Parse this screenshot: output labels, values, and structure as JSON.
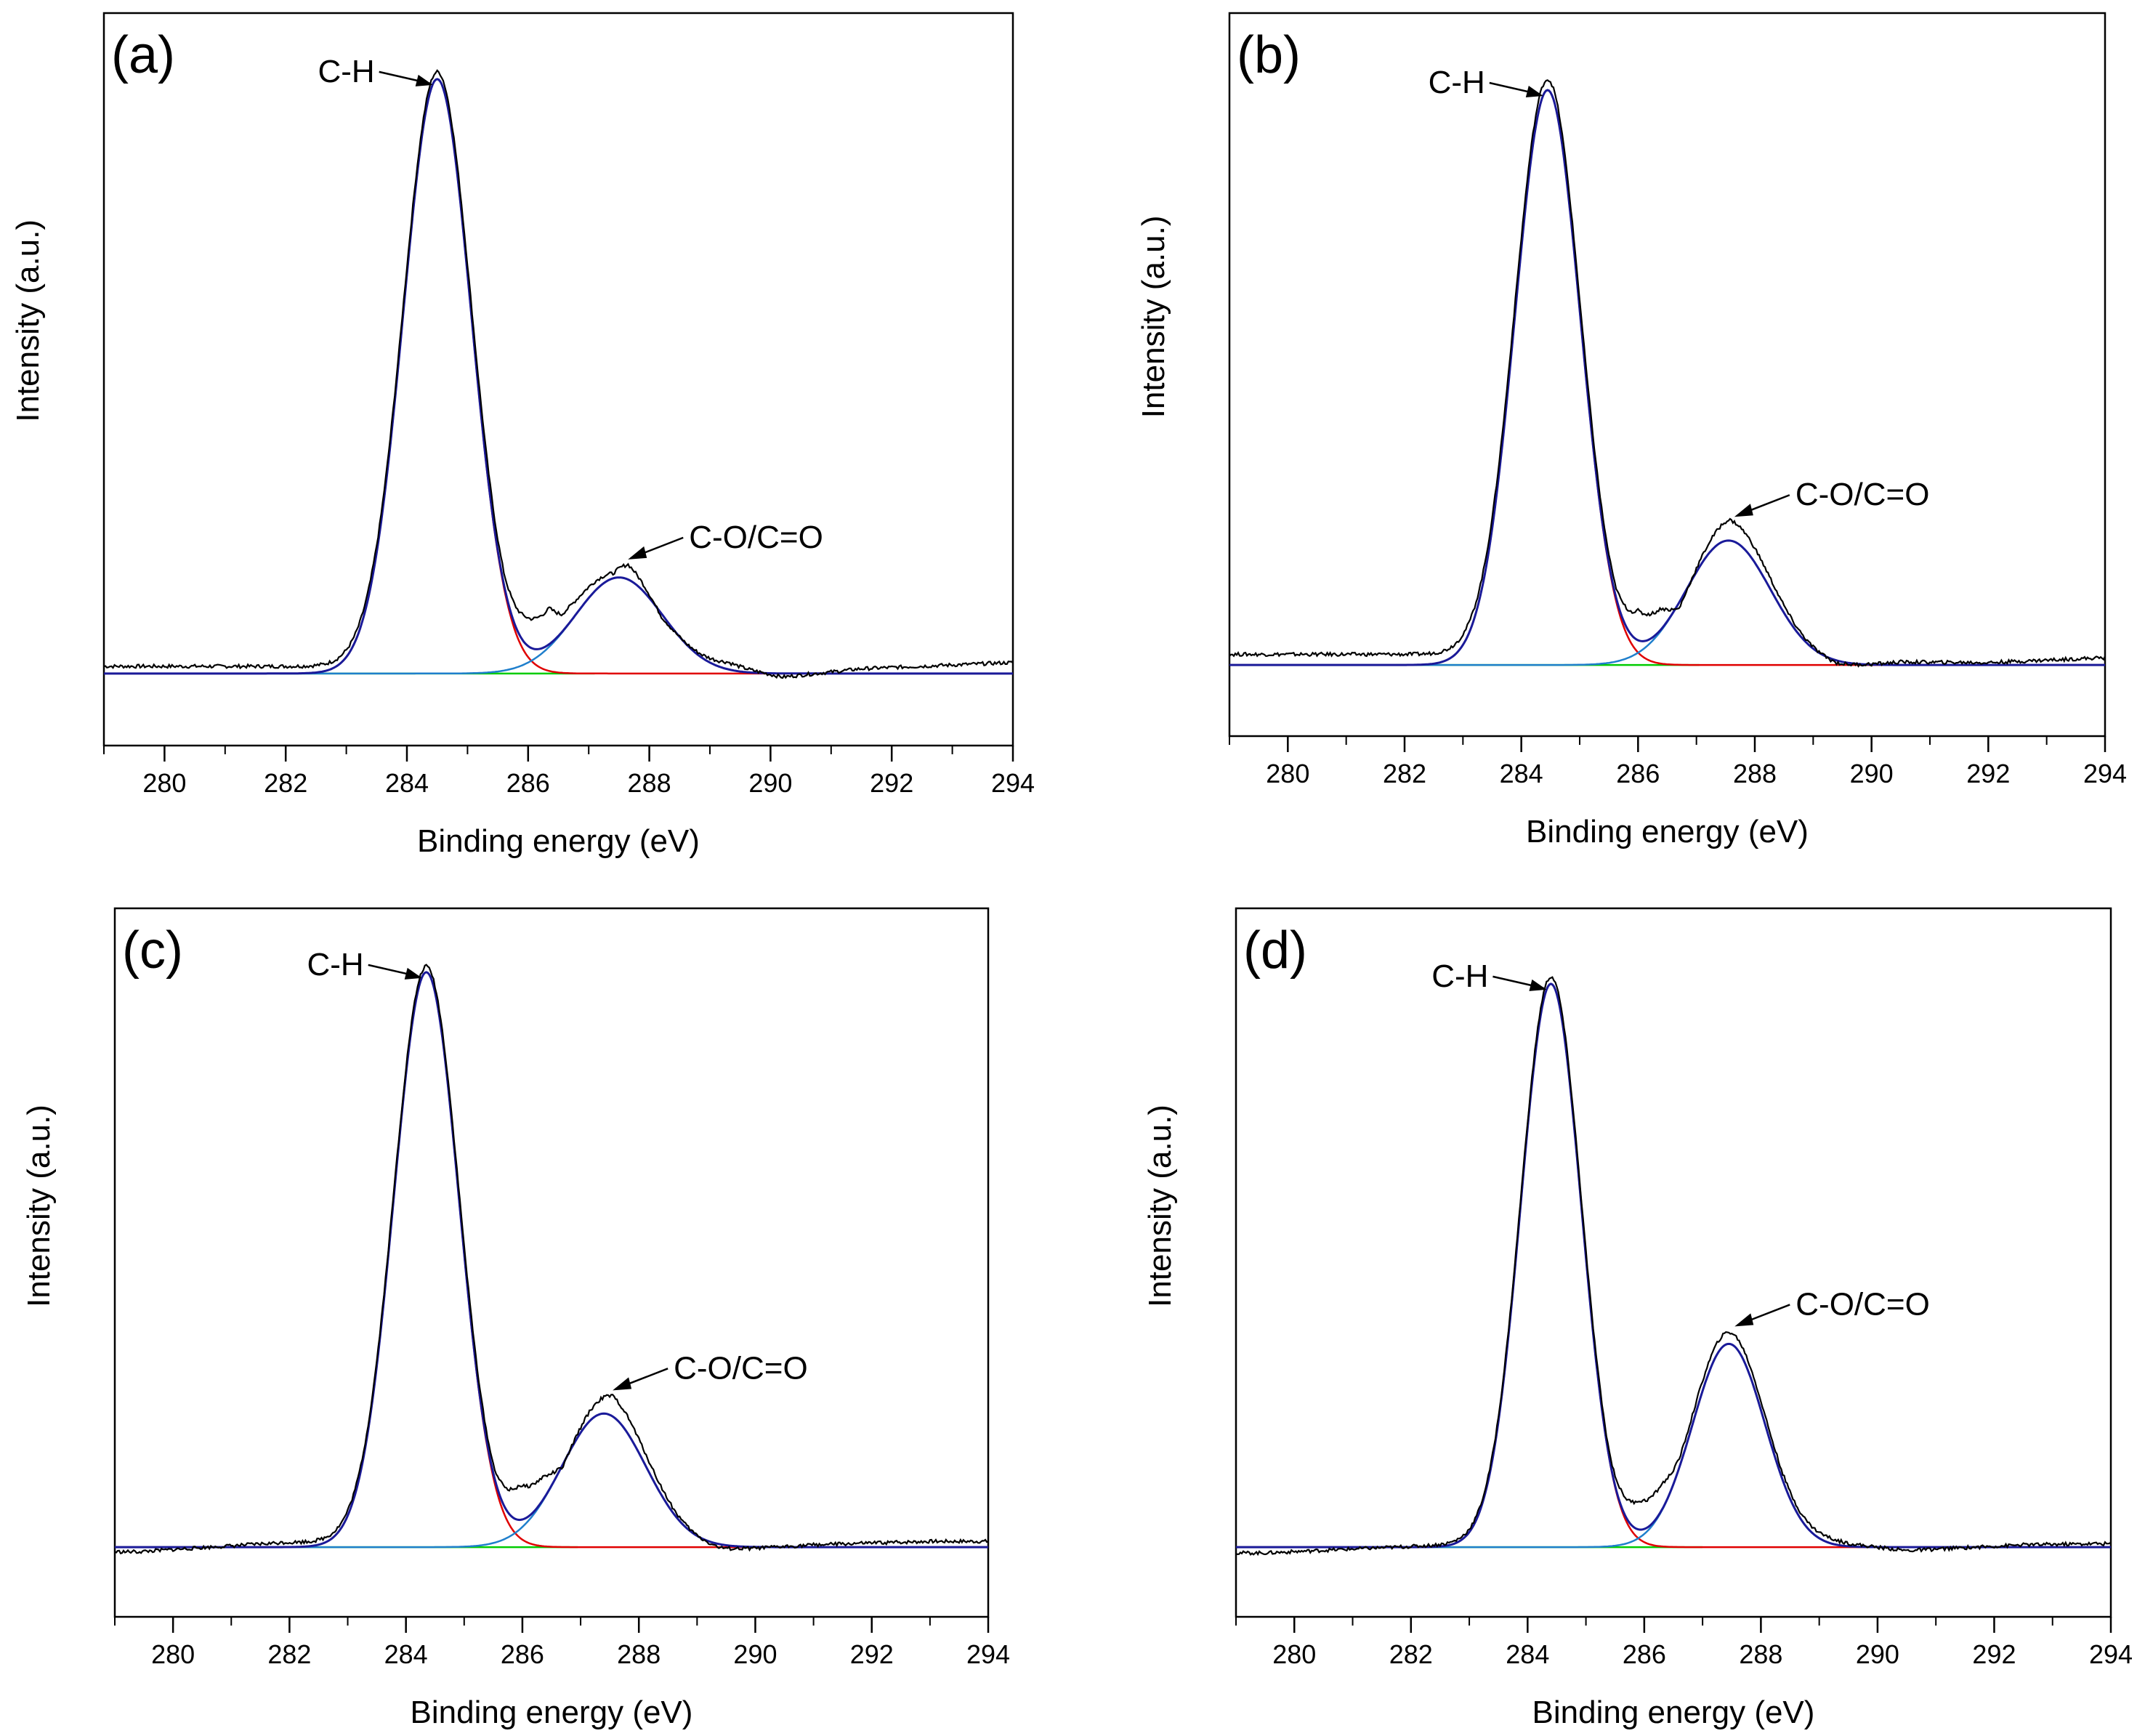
{
  "figure": {
    "colors": {
      "measured": "#000000",
      "envelope": "#1a1a99",
      "ch_component": "#e00000",
      "co_component": "#1f7fcc",
      "baseline": "#00cc00"
    },
    "line_names": [
      "measured",
      "envelope",
      "ch_component",
      "co_component",
      "baseline"
    ]
  },
  "chart_data": [
    {
      "type": "line",
      "panel_label": "(a)",
      "xlabel": "Binding energy (eV)",
      "ylabel": "Intensity (a.u.)",
      "xlim": [
        279,
        294
      ],
      "ylim": [
        -0.12,
        1.1
      ],
      "xticks": [
        280,
        282,
        284,
        286,
        288,
        290,
        292,
        294
      ],
      "x_minor_step": 1,
      "baseline": 0.0,
      "peaks": [
        {
          "name": "C-H",
          "center": 284.5,
          "height": 0.99,
          "sigma": 0.56
        },
        {
          "name": "C-O/C=O",
          "center": 287.5,
          "height": 0.16,
          "sigma": 0.72
        }
      ],
      "measured_offsets": [
        [
          284.48,
          0.012
        ],
        [
          285.6,
          0.02
        ],
        [
          285.95,
          0.045
        ],
        [
          286.35,
          0.06
        ],
        [
          286.55,
          0.03
        ],
        [
          287.4,
          0.008
        ],
        [
          287.65,
          0.025
        ],
        [
          288.2,
          -0.005
        ],
        [
          289.3,
          0.012
        ],
        [
          290.2,
          -0.006
        ],
        [
          291.5,
          0.008
        ],
        [
          293.9,
          0.018
        ]
      ],
      "annotations": [
        {
          "text": "C-H",
          "x": 284.5,
          "y": 0.99,
          "side": "left"
        },
        {
          "text": "C-O/C=O",
          "x": 287.6,
          "y": 0.19,
          "side": "right"
        }
      ]
    },
    {
      "type": "line",
      "panel_label": "(b)",
      "xlabel": "Binding energy (eV)",
      "ylabel": "Intensity (a.u.)",
      "xlim": [
        279,
        294
      ],
      "ylim": [
        -0.12,
        1.1
      ],
      "xticks": [
        280,
        282,
        284,
        286,
        288,
        290,
        292,
        294
      ],
      "x_minor_step": 1,
      "baseline": 0.0,
      "peaks": [
        {
          "name": "C-H",
          "center": 284.45,
          "height": 0.97,
          "sigma": 0.56
        },
        {
          "name": "C-O/C=O",
          "center": 287.55,
          "height": 0.21,
          "sigma": 0.72
        }
      ],
      "measured_offsets": [
        [
          284.42,
          0.018
        ],
        [
          285.6,
          0.015
        ],
        [
          286.0,
          0.05
        ],
        [
          286.4,
          0.035
        ],
        [
          286.7,
          -0.01
        ],
        [
          287.55,
          0.035
        ],
        [
          288.6,
          0.01
        ],
        [
          289.4,
          -0.004
        ],
        [
          290.5,
          0.005
        ],
        [
          292.0,
          0.004
        ],
        [
          293.9,
          0.012
        ]
      ],
      "annotations": [
        {
          "text": "C-H",
          "x": 284.45,
          "y": 0.97,
          "side": "left"
        },
        {
          "text": "C-O/C=O",
          "x": 287.6,
          "y": 0.25,
          "side": "right"
        }
      ]
    },
    {
      "type": "line",
      "panel_label": "(c)",
      "xlabel": "Binding energy (eV)",
      "ylabel": "Intensity (a.u.)",
      "xlim": [
        279,
        294
      ],
      "ylim": [
        -0.12,
        1.1
      ],
      "xticks": [
        280,
        282,
        284,
        286,
        288,
        290,
        292,
        294
      ],
      "x_minor_step": 1,
      "baseline": 0.0,
      "peaks": [
        {
          "name": "C-H",
          "center": 284.35,
          "height": 0.99,
          "sigma": 0.56
        },
        {
          "name": "C-O/C=O",
          "center": 287.4,
          "height": 0.23,
          "sigma": 0.72
        }
      ],
      "measured_offsets": [
        [
          279.4,
          -0.008
        ],
        [
          281.9,
          0.008
        ],
        [
          284.35,
          0.01
        ],
        [
          285.5,
          0.015
        ],
        [
          285.95,
          0.06
        ],
        [
          286.35,
          0.04
        ],
        [
          286.7,
          -0.005
        ],
        [
          287.55,
          0.035
        ],
        [
          288.6,
          0.008
        ],
        [
          289.4,
          -0.006
        ],
        [
          291.0,
          0.004
        ],
        [
          293.0,
          0.01
        ]
      ],
      "annotations": [
        {
          "text": "C-H",
          "x": 284.35,
          "y": 0.99,
          "side": "left"
        },
        {
          "text": "C-O/C=O",
          "x": 287.5,
          "y": 0.27,
          "side": "right"
        }
      ]
    },
    {
      "type": "line",
      "panel_label": "(d)",
      "xlabel": "Binding energy (eV)",
      "ylabel": "Intensity (a.u.)",
      "xlim": [
        279,
        294
      ],
      "ylim": [
        -0.12,
        1.1
      ],
      "xticks": [
        280,
        282,
        284,
        286,
        288,
        290,
        292,
        294
      ],
      "x_minor_step": 1,
      "baseline": 0.0,
      "peaks": [
        {
          "name": "C-H",
          "center": 284.4,
          "height": 0.97,
          "sigma": 0.52
        },
        {
          "name": "C-O/C=O",
          "center": 287.45,
          "height": 0.35,
          "sigma": 0.62
        }
      ],
      "measured_offsets": [
        [
          279.5,
          -0.01
        ],
        [
          284.4,
          0.012
        ],
        [
          285.4,
          0.01
        ],
        [
          285.9,
          0.05
        ],
        [
          286.3,
          0.045
        ],
        [
          286.6,
          0.015
        ],
        [
          287.45,
          0.02
        ],
        [
          288.4,
          0.012
        ],
        [
          289.1,
          0.01
        ],
        [
          290.5,
          -0.006
        ],
        [
          292.5,
          0.004
        ],
        [
          293.8,
          0.006
        ]
      ],
      "annotations": [
        {
          "text": "C-H",
          "x": 284.4,
          "y": 0.97,
          "side": "left"
        },
        {
          "text": "C-O/C=O",
          "x": 287.5,
          "y": 0.38,
          "side": "right"
        }
      ]
    }
  ]
}
